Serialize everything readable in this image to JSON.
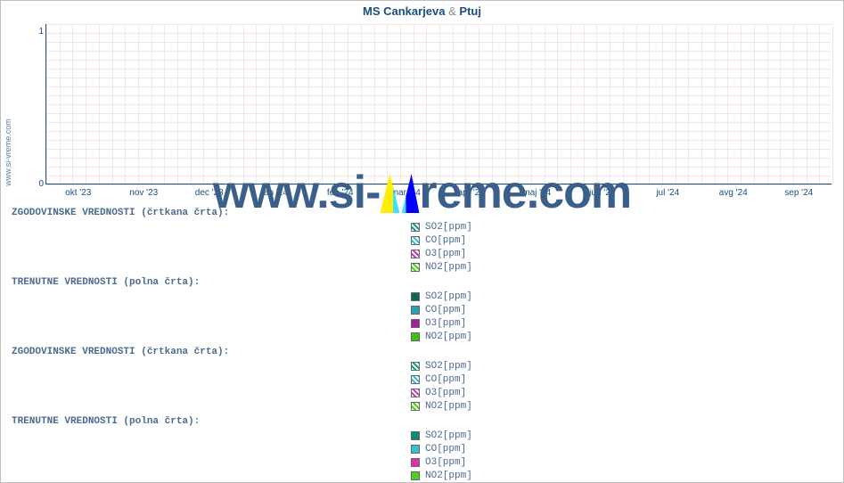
{
  "title_parts": {
    "a": "MS Cankarjeva",
    "amp": "&",
    "b": "Ptuj"
  },
  "ylabel": "www.si-vreme.com",
  "watermark_text": "www.si-vreme.com",
  "chart": {
    "type": "line",
    "background_color": "#ffffff",
    "grid_color": "#f2e6e6",
    "axis_color": "#1a4d80",
    "ylim": [
      0,
      1.05
    ],
    "yticks": [
      0,
      1
    ],
    "xticks": [
      "okt '23",
      "nov '23",
      "dec '23",
      "jan '24",
      "feb '24",
      "mar '24",
      "apr '24",
      "maj '24",
      "jun '24",
      "jul '24",
      "avg '24",
      "sep '24"
    ],
    "minor_grid_per_major": 5,
    "tick_fontsize": 10,
    "tick_color": "#1a4d80",
    "data_series": []
  },
  "sections": [
    {
      "label": "ZGODOVINSKE VREDNOSTI (črtkana črta):",
      "style": "dashed",
      "items": [
        {
          "name": "SO2[ppm]",
          "color": "#1a9a8a"
        },
        {
          "name": "CO[ppm]",
          "color": "#3ac0d0"
        },
        {
          "name": "O3[ppm]",
          "color": "#c040c0"
        },
        {
          "name": "NO2[ppm]",
          "color": "#50d020"
        }
      ]
    },
    {
      "label": "TRENUTNE VREDNOSTI (polna črta):",
      "style": "solid",
      "items": [
        {
          "name": "SO2[ppm]",
          "color": "#0a6a5a"
        },
        {
          "name": "CO[ppm]",
          "color": "#2aa0b0"
        },
        {
          "name": "O3[ppm]",
          "color": "#a020a0"
        },
        {
          "name": "NO2[ppm]",
          "color": "#40c010"
        }
      ]
    },
    {
      "label": "ZGODOVINSKE VREDNOSTI (črtkana črta):",
      "style": "dashed",
      "items": [
        {
          "name": "SO2[ppm]",
          "color": "#1a9a8a"
        },
        {
          "name": "CO[ppm]",
          "color": "#3ac0d0"
        },
        {
          "name": "O3[ppm]",
          "color": "#c040c0"
        },
        {
          "name": "NO2[ppm]",
          "color": "#50d020"
        }
      ]
    },
    {
      "label": "TRENUTNE VREDNOSTI (polna črta):",
      "style": "solid",
      "items": [
        {
          "name": "SO2[ppm]",
          "color": "#0a8a7a"
        },
        {
          "name": "CO[ppm]",
          "color": "#3ac0d0"
        },
        {
          "name": "O3[ppm]",
          "color": "#e030b0"
        },
        {
          "name": "NO2[ppm]",
          "color": "#50d020"
        }
      ]
    }
  ],
  "section_label_tops": [
    232,
    310,
    388,
    466
  ],
  "legend_block_tops": [
    246,
    324,
    402,
    480
  ]
}
